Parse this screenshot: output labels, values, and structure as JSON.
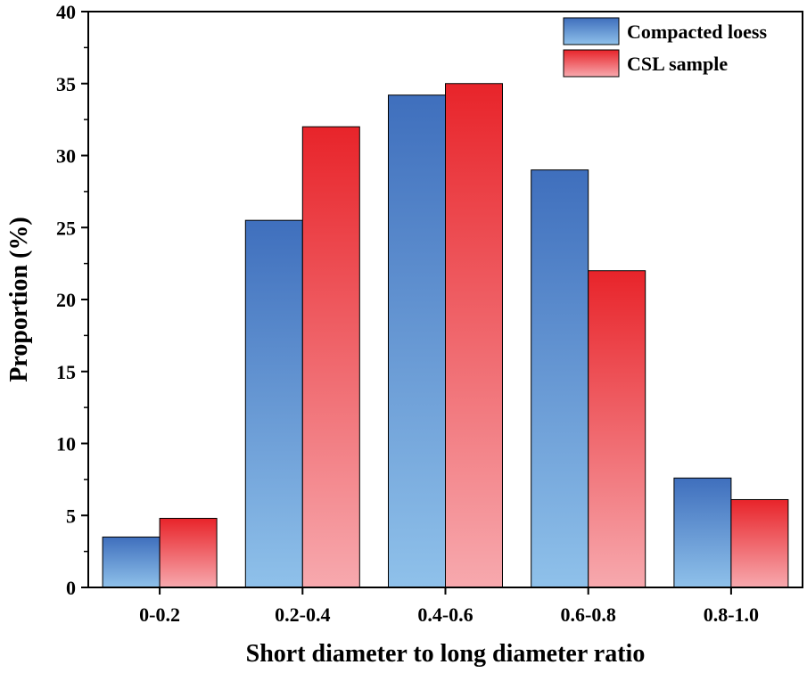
{
  "chart_data": {
    "type": "bar",
    "title": "",
    "xlabel": "Short diameter to long diameter ratio",
    "ylabel": "Proportion (%)",
    "ylim": [
      0,
      40
    ],
    "yticks": [
      0,
      5,
      10,
      15,
      20,
      25,
      30,
      35,
      40
    ],
    "grid": false,
    "legend_position": "top-right",
    "categories": [
      "0-0.2",
      "0.2-0.4",
      "0.4-0.6",
      "0.6-0.8",
      "0.8-1.0"
    ],
    "series": [
      {
        "name": "Compacted loess",
        "values": [
          3.5,
          25.5,
          34.2,
          29.0,
          7.6
        ],
        "color_top": "#3f6fbd",
        "color_bottom": "#8fc1ea"
      },
      {
        "name": "CSL sample",
        "values": [
          4.8,
          32.0,
          35.0,
          22.0,
          6.1
        ],
        "color_top": "#e8242a",
        "color_bottom": "#f7a9ae"
      }
    ]
  }
}
